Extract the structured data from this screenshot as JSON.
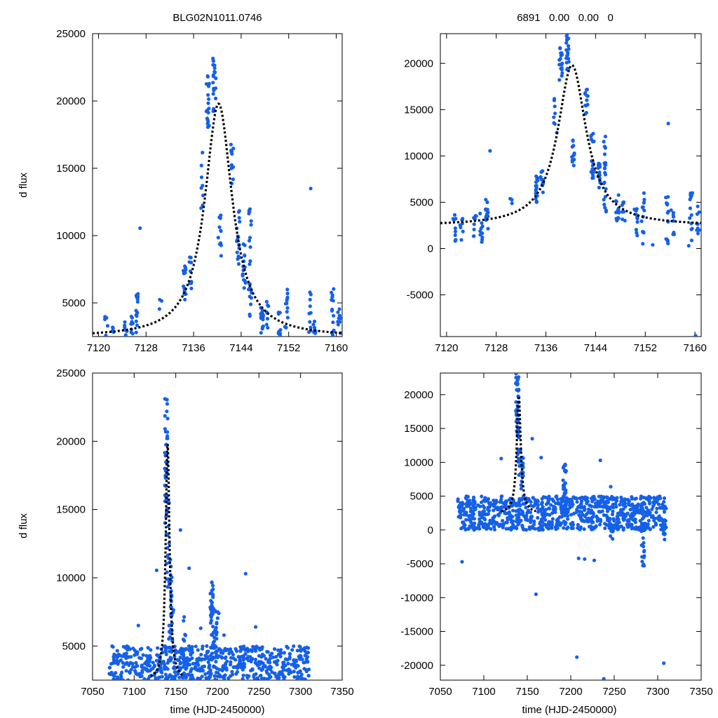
{
  "colors": {
    "points": "#1560e8",
    "model": "#000000",
    "background": "#ffffff"
  },
  "chart_data": [
    {
      "type": "scatter",
      "title": "BLG02N1011.0746",
      "xlabel": "",
      "ylabel": "d flux",
      "xlim": [
        7119,
        7161
      ],
      "ylim": [
        2500,
        25000
      ],
      "xticks": [
        7120,
        7128,
        7136,
        7144,
        7152,
        7160
      ],
      "yticks": [
        5000,
        10000,
        15000,
        20000,
        25000
      ],
      "model": {
        "t0": 7140.2,
        "peak": 19800,
        "baseline": 2450,
        "width": 2.8
      },
      "clusters": [
        {
          "x": 7121.3,
          "ymin": 2500,
          "ymax": 4000,
          "n": 6
        },
        {
          "x": 7122.4,
          "ymin": 2500,
          "ymax": 3300,
          "n": 5
        },
        {
          "x": 7124.6,
          "ymin": 2500,
          "ymax": 3600,
          "n": 6
        },
        {
          "x": 7125.6,
          "ymin": 2600,
          "ymax": 4000,
          "n": 8
        },
        {
          "x": 7126.5,
          "ymin": 2800,
          "ymax": 5800,
          "n": 14
        },
        {
          "x": 7130.4,
          "ymin": 4500,
          "ymax": 5400,
          "n": 3
        },
        {
          "x": 7134.5,
          "ymin": 5000,
          "ymax": 8200,
          "n": 16
        },
        {
          "x": 7135.4,
          "ymin": 6000,
          "ymax": 8400,
          "n": 10
        },
        {
          "x": 7137.5,
          "ymin": 12000,
          "ymax": 16200,
          "n": 8
        },
        {
          "x": 7138.4,
          "ymin": 17800,
          "ymax": 22200,
          "n": 18
        },
        {
          "x": 7139.5,
          "ymin": 19200,
          "ymax": 23200,
          "n": 20
        },
        {
          "x": 7140.4,
          "ymin": 8500,
          "ymax": 11800,
          "n": 12
        },
        {
          "x": 7142.5,
          "ymin": 13500,
          "ymax": 17400,
          "n": 12
        },
        {
          "x": 7143.5,
          "ymin": 7500,
          "ymax": 12500,
          "n": 18
        },
        {
          "x": 7144.5,
          "ymin": 6000,
          "ymax": 9500,
          "n": 14
        },
        {
          "x": 7145.5,
          "ymin": 3800,
          "ymax": 12200,
          "n": 22
        },
        {
          "x": 7147.5,
          "ymin": 2700,
          "ymax": 5800,
          "n": 14
        },
        {
          "x": 7148.5,
          "ymin": 3000,
          "ymax": 5600,
          "n": 8
        },
        {
          "x": 7150.5,
          "ymin": 2500,
          "ymax": 4400,
          "n": 8
        },
        {
          "x": 7151.6,
          "ymin": 2800,
          "ymax": 6000,
          "n": 14
        },
        {
          "x": 7155.5,
          "ymin": 2600,
          "ymax": 5800,
          "n": 10
        },
        {
          "x": 7156.4,
          "ymin": 2500,
          "ymax": 4200,
          "n": 8
        },
        {
          "x": 7159.4,
          "ymin": 2600,
          "ymax": 6100,
          "n": 14
        },
        {
          "x": 7160.5,
          "ymin": 2500,
          "ymax": 4600,
          "n": 10
        }
      ],
      "outliers": [
        {
          "x": 7127.0,
          "y": 10550
        },
        {
          "x": 7155.7,
          "y": 13500
        }
      ]
    },
    {
      "type": "scatter",
      "title": "6891   0.00   0.00   0",
      "xlabel": "",
      "ylabel": "",
      "xlim": [
        7119,
        7161
      ],
      "ylim": [
        -9500,
        23200
      ],
      "xticks": [
        7120,
        7128,
        7136,
        7144,
        7152,
        7160
      ],
      "yticks": [
        -5000,
        0,
        5000,
        10000,
        15000,
        20000
      ],
      "model": {
        "t0": 7140.2,
        "peak": 19800,
        "baseline": 2450,
        "width": 2.8
      },
      "clusters": [
        {
          "x": 7121.3,
          "ymin": 700,
          "ymax": 4000,
          "n": 10
        },
        {
          "x": 7122.4,
          "ymin": 800,
          "ymax": 3300,
          "n": 8
        },
        {
          "x": 7124.6,
          "ymin": 1000,
          "ymax": 3600,
          "n": 8
        },
        {
          "x": 7125.6,
          "ymin": 700,
          "ymax": 4000,
          "n": 10
        },
        {
          "x": 7126.5,
          "ymin": 2000,
          "ymax": 5800,
          "n": 14
        },
        {
          "x": 7130.4,
          "ymin": 4500,
          "ymax": 5400,
          "n": 3
        },
        {
          "x": 7134.5,
          "ymin": 5000,
          "ymax": 8200,
          "n": 16
        },
        {
          "x": 7135.4,
          "ymin": 6000,
          "ymax": 8400,
          "n": 10
        },
        {
          "x": 7137.5,
          "ymin": 12000,
          "ymax": 16200,
          "n": 8
        },
        {
          "x": 7138.4,
          "ymin": 17800,
          "ymax": 22200,
          "n": 18
        },
        {
          "x": 7139.5,
          "ymin": 19200,
          "ymax": 23200,
          "n": 20
        },
        {
          "x": 7140.4,
          "ymin": 8500,
          "ymax": 11800,
          "n": 12
        },
        {
          "x": 7142.5,
          "ymin": 13500,
          "ymax": 17400,
          "n": 12
        },
        {
          "x": 7143.5,
          "ymin": 7500,
          "ymax": 12500,
          "n": 18
        },
        {
          "x": 7144.5,
          "ymin": 6000,
          "ymax": 9500,
          "n": 14
        },
        {
          "x": 7145.5,
          "ymin": 3800,
          "ymax": 12200,
          "n": 22
        },
        {
          "x": 7147.5,
          "ymin": 2700,
          "ymax": 5800,
          "n": 14
        },
        {
          "x": 7148.5,
          "ymin": 3000,
          "ymax": 5600,
          "n": 8
        },
        {
          "x": 7150.5,
          "ymin": 1000,
          "ymax": 4400,
          "n": 10
        },
        {
          "x": 7151.6,
          "ymin": 500,
          "ymax": 6000,
          "n": 14
        },
        {
          "x": 7155.5,
          "ymin": 500,
          "ymax": 5800,
          "n": 14
        },
        {
          "x": 7156.4,
          "ymin": 1200,
          "ymax": 4200,
          "n": 8
        },
        {
          "x": 7159.4,
          "ymin": 700,
          "ymax": 6100,
          "n": 14
        },
        {
          "x": 7160.5,
          "ymin": 1300,
          "ymax": 4600,
          "n": 10
        }
      ],
      "outliers": [
        {
          "x": 7127.0,
          "y": 10550
        },
        {
          "x": 7155.7,
          "y": 13500
        },
        {
          "x": 7153.2,
          "y": 400
        },
        {
          "x": 7159.0,
          "y": 300
        },
        {
          "x": 7160.1,
          "y": -9400
        }
      ]
    },
    {
      "type": "scatter",
      "title": "",
      "xlabel": "time (HJD-2450000)",
      "ylabel": "d flux",
      "xlim": [
        7050,
        7350
      ],
      "ylim": [
        2500,
        25000
      ],
      "xticks": [
        7050,
        7100,
        7150,
        7200,
        7250,
        7300,
        7350
      ],
      "yticks": [
        5000,
        10000,
        15000,
        20000,
        25000
      ],
      "model": {
        "t0": 7140.2,
        "peak": 19800,
        "baseline": 2450,
        "width": 2.8,
        "range": [
          7120,
          7160
        ]
      },
      "band": {
        "xmin": 7070,
        "xmax": 7310,
        "ymin": 2500,
        "ymax": 5000,
        "n": 650,
        "seed": 11
      },
      "clusters": [
        {
          "x": 7138.5,
          "ymin": 14000,
          "ymax": 23200,
          "n": 40
        },
        {
          "x": 7140.5,
          "ymin": 8000,
          "ymax": 16000,
          "n": 20
        },
        {
          "x": 7143.5,
          "ymin": 5000,
          "ymax": 12000,
          "n": 20
        },
        {
          "x": 7145.5,
          "ymin": 4000,
          "ymax": 9000,
          "n": 14
        },
        {
          "x": 7193.0,
          "ymin": 5500,
          "ymax": 9700,
          "n": 30
        },
        {
          "x": 7196.0,
          "ymin": 4500,
          "ymax": 8000,
          "n": 14
        },
        {
          "x": 7160.0,
          "ymin": 4000,
          "ymax": 7500,
          "n": 12
        },
        {
          "x": 7200.0,
          "ymin": 4000,
          "ymax": 7500,
          "n": 10
        }
      ],
      "outliers": [
        {
          "x": 7127.0,
          "y": 10550
        },
        {
          "x": 7155.7,
          "y": 13500
        },
        {
          "x": 7166.0,
          "y": 10700
        },
        {
          "x": 7234.0,
          "y": 10300
        },
        {
          "x": 7180.0,
          "y": 6300
        },
        {
          "x": 7208.0,
          "y": 5800
        },
        {
          "x": 7246.0,
          "y": 6400
        },
        {
          "x": 7105.0,
          "y": 6500
        }
      ]
    },
    {
      "type": "scatter",
      "title": "",
      "xlabel": "time (HJD-2450000)",
      "ylabel": "",
      "xlim": [
        7050,
        7350
      ],
      "ylim": [
        -22200,
        23200
      ],
      "xticks": [
        7050,
        7100,
        7150,
        7200,
        7250,
        7300,
        7350
      ],
      "yticks": [
        -20000,
        -15000,
        -10000,
        -5000,
        0,
        5000,
        10000,
        15000,
        20000
      ],
      "model": {
        "t0": 7140.2,
        "peak": 19800,
        "baseline": 2450,
        "width": 2.8,
        "range": [
          7120,
          7160
        ]
      },
      "band": {
        "xmin": 7070,
        "xmax": 7310,
        "ymin": 0,
        "ymax": 5000,
        "n": 900,
        "seed": 23
      },
      "clusters": [
        {
          "x": 7138.5,
          "ymin": 14000,
          "ymax": 23200,
          "n": 40
        },
        {
          "x": 7140.5,
          "ymin": 8000,
          "ymax": 16000,
          "n": 20
        },
        {
          "x": 7143.5,
          "ymin": 5000,
          "ymax": 12000,
          "n": 20
        },
        {
          "x": 7193.0,
          "ymin": 3000,
          "ymax": 9700,
          "n": 30
        },
        {
          "x": 7283.0,
          "ymin": -5400,
          "ymax": 1000,
          "n": 20
        },
        {
          "x": 7307.0,
          "ymin": -1800,
          "ymax": 2000,
          "n": 10
        },
        {
          "x": 7247.0,
          "ymin": -1600,
          "ymax": 1000,
          "n": 8
        }
      ],
      "outliers": [
        {
          "x": 7075.0,
          "y": -4700
        },
        {
          "x": 7120.0,
          "y": 10550
        },
        {
          "x": 7155.7,
          "y": 13500
        },
        {
          "x": 7160.0,
          "y": -9500
        },
        {
          "x": 7166.0,
          "y": 10700
        },
        {
          "x": 7207.0,
          "y": -18800
        },
        {
          "x": 7209.0,
          "y": -4200
        },
        {
          "x": 7216.0,
          "y": -4300
        },
        {
          "x": 7227.0,
          "y": -4500
        },
        {
          "x": 7234.0,
          "y": 10300
        },
        {
          "x": 7238.0,
          "y": -22000
        },
        {
          "x": 7307.0,
          "y": -19700
        },
        {
          "x": 7246.0,
          "y": 6400
        }
      ]
    }
  ]
}
